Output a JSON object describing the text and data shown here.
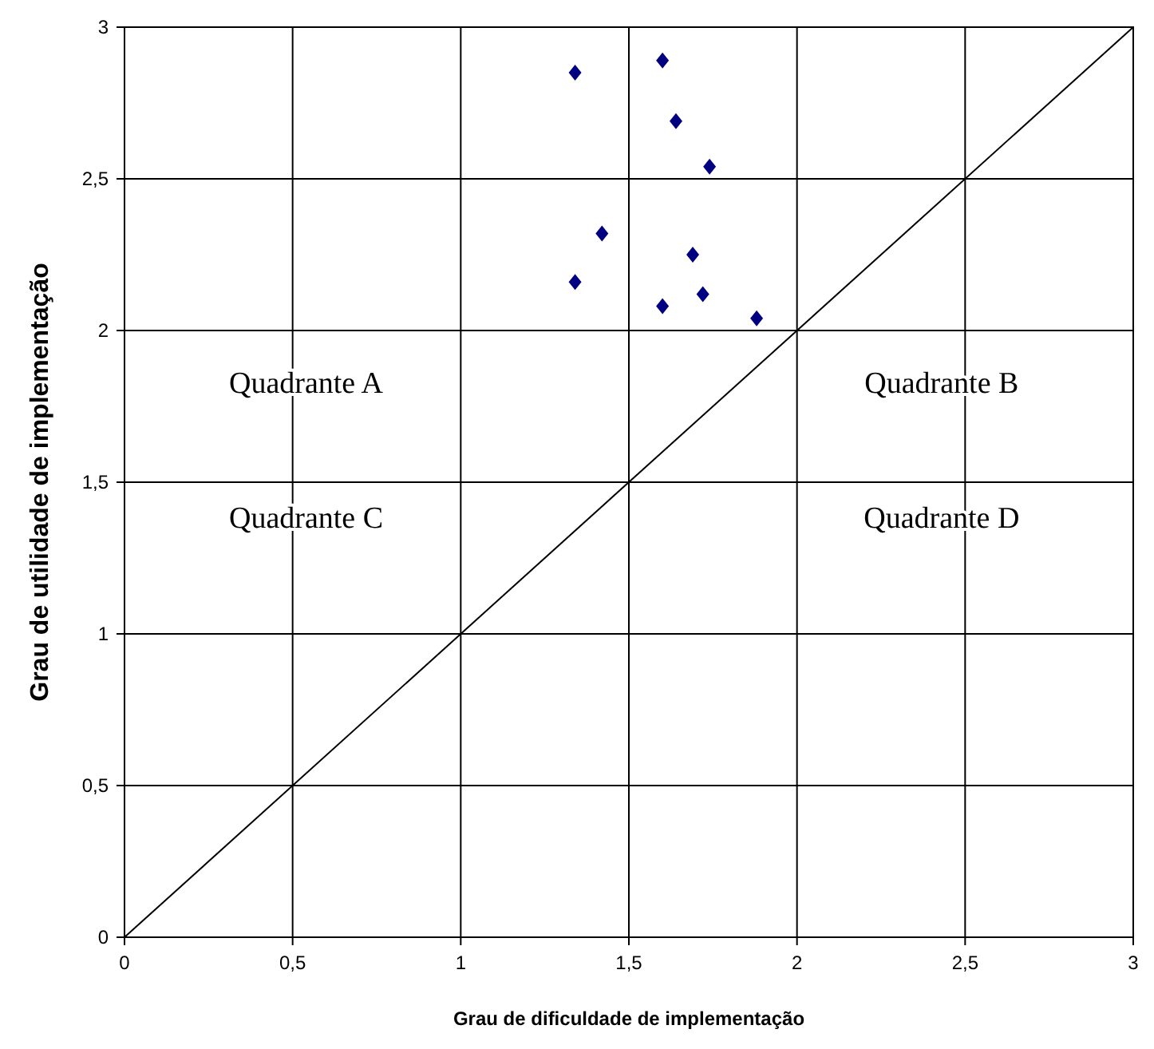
{
  "chart_data": {
    "type": "scatter",
    "xlabel": "Grau de dificuldade de implementação",
    "ylabel": "Grau de utilidade de implementação",
    "xlim": [
      0,
      3
    ],
    "ylim": [
      0,
      3
    ],
    "xticks": [
      0,
      {
        "value": 0.5,
        "label": "0,5"
      },
      1,
      {
        "value": 1.5,
        "label": "1,5"
      },
      2,
      {
        "value": 2.5,
        "label": "2,5"
      },
      3
    ],
    "yticks": [
      0,
      {
        "value": 0.5,
        "label": "0,5"
      },
      1,
      {
        "value": 1.5,
        "label": "1,5"
      },
      2,
      {
        "value": 2.5,
        "label": "2,5"
      },
      3
    ],
    "grid": true,
    "series": [
      {
        "color": "#000080",
        "marker": "diamond",
        "x": [
          1.34,
          1.6,
          1.64,
          1.74,
          1.42,
          1.69,
          1.34,
          1.6,
          1.72,
          1.88
        ],
        "values": [
          2.85,
          2.89,
          2.69,
          2.54,
          2.32,
          2.25,
          2.16,
          2.08,
          2.12,
          2.04
        ]
      },
      {
        "type": "line",
        "color": "#000000",
        "x": [
          0,
          3
        ],
        "values": [
          0,
          3
        ]
      }
    ],
    "annotations": [
      "Quadrante A",
      "Quadrante B",
      "Quadrante C",
      "Quadrante D"
    ]
  }
}
